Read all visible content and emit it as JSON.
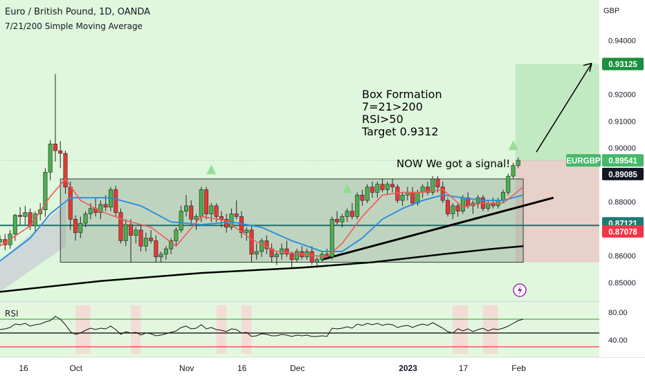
{
  "header": {
    "symbol_line": "Euro / British Pound, 1D, OANDA",
    "indicator_line": "7/21/200 Simple Moving Average"
  },
  "currency_label": "GBP",
  "annotation": {
    "lines": [
      "Box Formation",
      "7=21>200",
      "RSI>50",
      "Target 0.9312"
    ],
    "signal": "NOW We got a signal!"
  },
  "colors": {
    "up_candle": "#4caf50",
    "down_candle": "#e53935",
    "sma7": "#f05a5a",
    "sma21": "#2e8fdc",
    "sma200": "#000000",
    "range_line": "#1f6f6a",
    "target_label": "#1b8f3c",
    "current_label": "#46b86a",
    "stop_label": "#f23645",
    "background": "#dff7dc"
  },
  "chart_data": {
    "type": "candlestick",
    "symbol": "EURGBP",
    "y_ticks": [
      "0.85000",
      "0.86000",
      "0.87000",
      "0.88000",
      "0.89000",
      "0.90000",
      "0.91000",
      "0.92000",
      "0.93000",
      "0.94000"
    ],
    "ylim": [
      0.843,
      0.953
    ],
    "x_ticks": [
      {
        "label": "16",
        "index": 0
      },
      {
        "label": "Oct",
        "index": 14
      },
      {
        "label": "Nov",
        "index": 36
      },
      {
        "label": "16",
        "index": 47
      },
      {
        "label": "Dec",
        "index": 58
      },
      {
        "label": "2023",
        "index": 80
      },
      {
        "label": "17",
        "index": 91
      },
      {
        "label": "Feb",
        "index": 102
      }
    ],
    "price_labels": [
      {
        "name": "target",
        "value": "0.93125",
        "price": 0.93125
      },
      {
        "name": "current",
        "symbol": "EURGBP",
        "value": "0.89541",
        "price": 0.89541
      },
      {
        "name": "level",
        "value": "0.89085",
        "price": 0.89085
      },
      {
        "name": "support",
        "value": "0.87121",
        "price": 0.87121
      },
      {
        "name": "stop",
        "value": "0.87078",
        "price": 0.87078
      }
    ],
    "box": {
      "start_index": 12,
      "end_index": 104,
      "top": 0.8885,
      "bottom": 0.8575
    },
    "ohlc": [
      [
        0.865,
        0.8675,
        0.8635,
        0.866
      ],
      [
        0.866,
        0.868,
        0.862,
        0.864
      ],
      [
        0.864,
        0.8695,
        0.8625,
        0.868
      ],
      [
        0.868,
        0.8755,
        0.8655,
        0.875
      ],
      [
        0.875,
        0.878,
        0.8715,
        0.8745
      ],
      [
        0.8745,
        0.8785,
        0.8715,
        0.876
      ],
      [
        0.876,
        0.8775,
        0.8695,
        0.871
      ],
      [
        0.871,
        0.8765,
        0.869,
        0.8755
      ],
      [
        0.8755,
        0.8795,
        0.873,
        0.877
      ],
      [
        0.877,
        0.8925,
        0.8745,
        0.891
      ],
      [
        0.891,
        0.903,
        0.888,
        0.9015
      ],
      [
        0.9015,
        0.9275,
        0.895,
        0.899
      ],
      [
        0.899,
        0.9025,
        0.8925,
        0.898
      ],
      [
        0.898,
        0.899,
        0.883,
        0.8855
      ],
      [
        0.8855,
        0.8875,
        0.8695,
        0.8735
      ],
      [
        0.8735,
        0.875,
        0.8655,
        0.8685
      ],
      [
        0.8685,
        0.8745,
        0.8665,
        0.872
      ],
      [
        0.872,
        0.8765,
        0.8705,
        0.8755
      ],
      [
        0.8755,
        0.8795,
        0.8735,
        0.8775
      ],
      [
        0.8775,
        0.8815,
        0.8745,
        0.876
      ],
      [
        0.876,
        0.8805,
        0.8735,
        0.879
      ],
      [
        0.879,
        0.8825,
        0.8765,
        0.878
      ],
      [
        0.878,
        0.8855,
        0.8765,
        0.8845
      ],
      [
        0.8845,
        0.886,
        0.8745,
        0.876
      ],
      [
        0.876,
        0.8775,
        0.8645,
        0.8655
      ],
      [
        0.8655,
        0.8735,
        0.8635,
        0.8715
      ],
      [
        0.8715,
        0.8735,
        0.8575,
        0.8675
      ],
      [
        0.8675,
        0.8705,
        0.8645,
        0.8695
      ],
      [
        0.8695,
        0.8715,
        0.8615,
        0.8635
      ],
      [
        0.8635,
        0.8685,
        0.8615,
        0.8665
      ],
      [
        0.8665,
        0.8695,
        0.8645,
        0.8655
      ],
      [
        0.8655,
        0.8675,
        0.8575,
        0.8595
      ],
      [
        0.8595,
        0.8615,
        0.8575,
        0.8605
      ],
      [
        0.8605,
        0.8635,
        0.8585,
        0.8625
      ],
      [
        0.8625,
        0.8665,
        0.8605,
        0.8655
      ],
      [
        0.8655,
        0.8705,
        0.8635,
        0.8695
      ],
      [
        0.8695,
        0.8785,
        0.8685,
        0.8765
      ],
      [
        0.8765,
        0.8825,
        0.8745,
        0.8785
      ],
      [
        0.8785,
        0.8805,
        0.8715,
        0.8735
      ],
      [
        0.8735,
        0.8755,
        0.8695,
        0.8745
      ],
      [
        0.8745,
        0.8855,
        0.8725,
        0.8845
      ],
      [
        0.8845,
        0.8855,
        0.8735,
        0.8755
      ],
      [
        0.8755,
        0.8795,
        0.8725,
        0.8785
      ],
      [
        0.8785,
        0.8795,
        0.8725,
        0.8745
      ],
      [
        0.8745,
        0.8765,
        0.8705,
        0.8735
      ],
      [
        0.8735,
        0.8755,
        0.8685,
        0.8705
      ],
      [
        0.8705,
        0.8775,
        0.8695,
        0.8755
      ],
      [
        0.8755,
        0.8805,
        0.8735,
        0.8745
      ],
      [
        0.8745,
        0.8765,
        0.8665,
        0.8685
      ],
      [
        0.8685,
        0.8705,
        0.8655,
        0.8695
      ],
      [
        0.8695,
        0.8715,
        0.8575,
        0.8605
      ],
      [
        0.8605,
        0.8645,
        0.8585,
        0.8615
      ],
      [
        0.8615,
        0.8665,
        0.8595,
        0.8655
      ],
      [
        0.8655,
        0.8675,
        0.8605,
        0.8625
      ],
      [
        0.8625,
        0.8645,
        0.8575,
        0.8595
      ],
      [
        0.8595,
        0.8615,
        0.8565,
        0.8605
      ],
      [
        0.8605,
        0.8645,
        0.8585,
        0.8625
      ],
      [
        0.8625,
        0.8655,
        0.8595,
        0.8605
      ],
      [
        0.8605,
        0.8615,
        0.8555,
        0.8585
      ],
      [
        0.8585,
        0.8625,
        0.8575,
        0.8615
      ],
      [
        0.8615,
        0.8635,
        0.8585,
        0.8595
      ],
      [
        0.8595,
        0.8625,
        0.8585,
        0.8615
      ],
      [
        0.8615,
        0.8635,
        0.8565,
        0.8575
      ],
      [
        0.8575,
        0.8595,
        0.8555,
        0.8585
      ],
      [
        0.8585,
        0.8615,
        0.8575,
        0.8605
      ],
      [
        0.8605,
        0.8625,
        0.8585,
        0.8595
      ],
      [
        0.8595,
        0.8745,
        0.8585,
        0.8735
      ],
      [
        0.8735,
        0.8765,
        0.8715,
        0.8725
      ],
      [
        0.8725,
        0.8755,
        0.8705,
        0.8745
      ],
      [
        0.8745,
        0.8775,
        0.8725,
        0.8765
      ],
      [
        0.8765,
        0.8795,
        0.8735,
        0.8745
      ],
      [
        0.8745,
        0.8835,
        0.8735,
        0.8825
      ],
      [
        0.8825,
        0.8845,
        0.8785,
        0.8805
      ],
      [
        0.8805,
        0.8865,
        0.8795,
        0.8855
      ],
      [
        0.8855,
        0.8875,
        0.8815,
        0.8835
      ],
      [
        0.8835,
        0.8875,
        0.8815,
        0.8865
      ],
      [
        0.8865,
        0.8885,
        0.8835,
        0.8845
      ],
      [
        0.8845,
        0.8875,
        0.8825,
        0.8865
      ],
      [
        0.8865,
        0.8885,
        0.8835,
        0.8855
      ],
      [
        0.8855,
        0.8865,
        0.8795,
        0.8805
      ],
      [
        0.8805,
        0.8835,
        0.8785,
        0.8825
      ],
      [
        0.8825,
        0.8855,
        0.8805,
        0.8835
      ],
      [
        0.8835,
        0.8855,
        0.8785,
        0.8795
      ],
      [
        0.8795,
        0.8845,
        0.8785,
        0.8835
      ],
      [
        0.8835,
        0.8865,
        0.8815,
        0.8855
      ],
      [
        0.8855,
        0.8875,
        0.8825,
        0.8835
      ],
      [
        0.8835,
        0.8895,
        0.8825,
        0.8885
      ],
      [
        0.8885,
        0.8895,
        0.8835,
        0.8855
      ],
      [
        0.8855,
        0.8875,
        0.8795,
        0.8805
      ],
      [
        0.8805,
        0.8815,
        0.8745,
        0.8755
      ],
      [
        0.8755,
        0.8795,
        0.8735,
        0.8785
      ],
      [
        0.8785,
        0.8795,
        0.8745,
        0.8765
      ],
      [
        0.8765,
        0.8825,
        0.8755,
        0.8815
      ],
      [
        0.8815,
        0.8835,
        0.8775,
        0.8785
      ],
      [
        0.8785,
        0.8805,
        0.8755,
        0.8795
      ],
      [
        0.8795,
        0.8825,
        0.8775,
        0.8815
      ],
      [
        0.8815,
        0.8825,
        0.8765,
        0.8775
      ],
      [
        0.8775,
        0.8805,
        0.8765,
        0.8795
      ],
      [
        0.8795,
        0.8815,
        0.8775,
        0.8785
      ],
      [
        0.8785,
        0.8815,
        0.8775,
        0.8805
      ],
      [
        0.8805,
        0.8845,
        0.8795,
        0.8835
      ],
      [
        0.8835,
        0.8905,
        0.8825,
        0.8895
      ],
      [
        0.8895,
        0.8945,
        0.8885,
        0.8935
      ],
      [
        0.8935,
        0.8965,
        0.8925,
        0.8954
      ]
    ],
    "sma7_points": [
      [
        0,
        0.8635
      ],
      [
        6,
        0.871
      ],
      [
        10,
        0.882
      ],
      [
        13,
        0.8885
      ],
      [
        16,
        0.8805
      ],
      [
        20,
        0.8765
      ],
      [
        25,
        0.873
      ],
      [
        30,
        0.8705
      ],
      [
        35,
        0.8635
      ],
      [
        40,
        0.8745
      ],
      [
        45,
        0.873
      ],
      [
        50,
        0.866
      ],
      [
        55,
        0.8615
      ],
      [
        60,
        0.8605
      ],
      [
        65,
        0.8595
      ],
      [
        68,
        0.8645
      ],
      [
        72,
        0.8745
      ],
      [
        76,
        0.8825
      ],
      [
        80,
        0.8835
      ],
      [
        84,
        0.8835
      ],
      [
        88,
        0.8845
      ],
      [
        92,
        0.878
      ],
      [
        96,
        0.8795
      ],
      [
        100,
        0.8795
      ],
      [
        104,
        0.8855
      ]
    ],
    "sma21_points": [
      [
        0,
        0.858
      ],
      [
        6,
        0.8665
      ],
      [
        10,
        0.8755
      ],
      [
        14,
        0.8815
      ],
      [
        18,
        0.8815
      ],
      [
        22,
        0.8815
      ],
      [
        28,
        0.8785
      ],
      [
        34,
        0.8725
      ],
      [
        40,
        0.8715
      ],
      [
        46,
        0.8725
      ],
      [
        52,
        0.8705
      ],
      [
        58,
        0.8655
      ],
      [
        64,
        0.8615
      ],
      [
        68,
        0.8615
      ],
      [
        72,
        0.8665
      ],
      [
        76,
        0.8735
      ],
      [
        80,
        0.8775
      ],
      [
        84,
        0.8805
      ],
      [
        88,
        0.8825
      ],
      [
        92,
        0.8815
      ],
      [
        96,
        0.8805
      ],
      [
        100,
        0.8805
      ],
      [
        104,
        0.8825
      ]
    ],
    "sma200_points": [
      [
        0,
        0.8465
      ],
      [
        20,
        0.8505
      ],
      [
        40,
        0.8535
      ],
      [
        60,
        0.8555
      ],
      [
        74,
        0.8575
      ],
      [
        88,
        0.8605
      ],
      [
        98,
        0.8625
      ],
      [
        104,
        0.8635
      ]
    ],
    "trendline": {
      "start": [
        64,
        0.8585
      ],
      "end": [
        110,
        0.8815
      ]
    },
    "rsi": {
      "label": "RSI",
      "y_ticks": [
        "80.00",
        "40.00"
      ],
      "ylim": [
        20,
        90
      ],
      "levels": [
        30,
        50,
        70
      ],
      "values": [
        55,
        56,
        58,
        63,
        62,
        64,
        60,
        62,
        63,
        66,
        68,
        74,
        70,
        62,
        52,
        48,
        50,
        54,
        57,
        55,
        57,
        56,
        60,
        55,
        48,
        52,
        50,
        51,
        47,
        50,
        49,
        46,
        47,
        49,
        51,
        53,
        58,
        60,
        56,
        57,
        62,
        56,
        58,
        55,
        54,
        52,
        56,
        55,
        50,
        51,
        45,
        46,
        49,
        48,
        46,
        46,
        48,
        47,
        45,
        47,
        46,
        47,
        45,
        45,
        46,
        45,
        57,
        56,
        57,
        59,
        57,
        63,
        61,
        64,
        62,
        64,
        61,
        63,
        62,
        58,
        60,
        61,
        58,
        61,
        63,
        61,
        65,
        61,
        57,
        52,
        50,
        56,
        53,
        56,
        52,
        55,
        57,
        53,
        56,
        55,
        57,
        60,
        64,
        68,
        70
      ]
    }
  }
}
